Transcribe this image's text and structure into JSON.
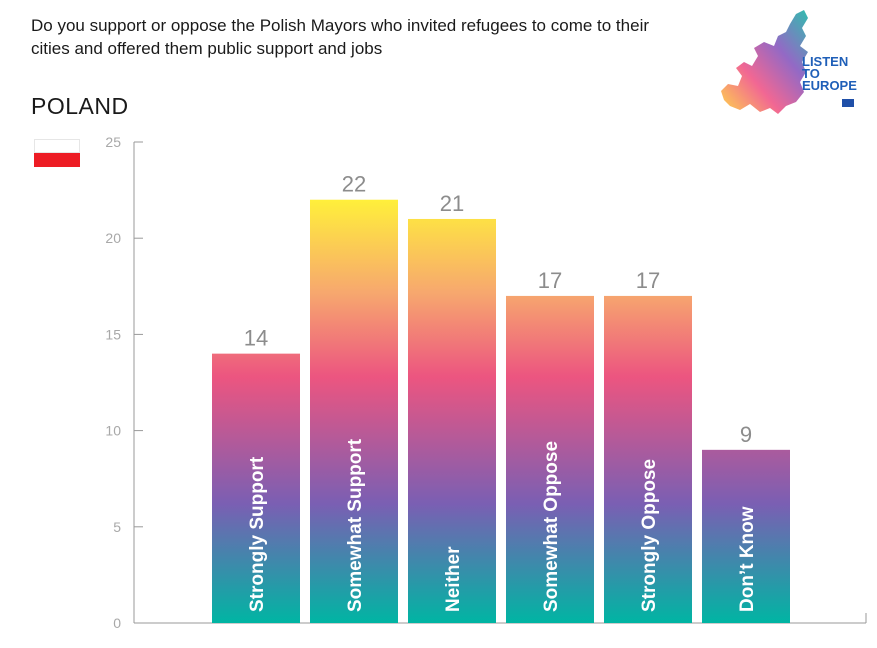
{
  "header": {
    "question": "Do you support or oppose the Polish Mayors who invited refugees to come to their cities and offered them public support and jobs",
    "country": "POLAND"
  },
  "logo": {
    "line1": "LISTEN",
    "line2": "TO",
    "line3": "EUROPE"
  },
  "colors": {
    "gradient_top": "#fff03a",
    "gradient_upper": "#f7a86e",
    "gradient_mid": "#ec5580",
    "gradient_lower": "#7a5fb3",
    "gradient_bottom": "#00b5a3",
    "flag_red": "#ed1c24",
    "value_label": "#8c8c8c",
    "axis": "#999999"
  },
  "chart_data": {
    "type": "bar",
    "categories": [
      "Strongly Support",
      "Somewhat  Support",
      "Neither",
      "Somewhat Oppose",
      "Strongly Oppose",
      "Don’t Know"
    ],
    "values": [
      14,
      22,
      21,
      17,
      17,
      9
    ],
    "ylim": [
      0,
      25
    ],
    "yticks": [
      0,
      5,
      10,
      15,
      20,
      25
    ],
    "title": "",
    "xlabel": "",
    "ylabel": "",
    "grid": false,
    "legend": false
  }
}
